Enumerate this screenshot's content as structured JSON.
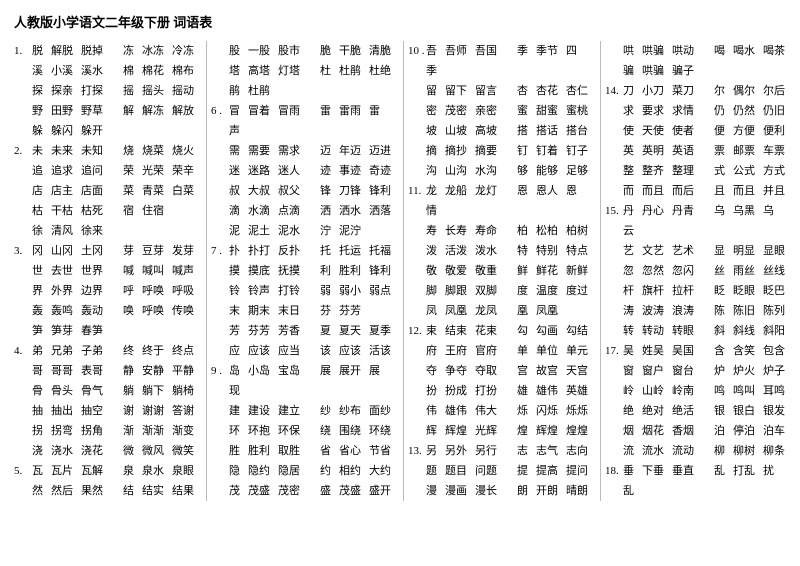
{
  "title": "人教版小学语文二年级下册 词语表",
  "columns": [
    [
      {
        "n": "1.",
        "left": [
          "脱",
          "解脱",
          "脱掉"
        ],
        "right": [
          "冻",
          "冰冻",
          "冷冻"
        ]
      },
      {
        "n": "",
        "left": [
          "溪",
          "小溪",
          "溪水"
        ],
        "right": [
          "棉",
          "棉花",
          "棉布"
        ]
      },
      {
        "n": "",
        "left": [
          "探",
          "探亲",
          "打探"
        ],
        "right": [
          "摇",
          "摇头",
          "摇动"
        ]
      },
      {
        "n": "",
        "left": [
          "野",
          "田野",
          "野草"
        ],
        "right": [
          "解",
          "解冻",
          "解放"
        ]
      },
      {
        "n": "",
        "left": [
          "躲",
          "躲闪",
          "躲开"
        ]
      },
      {
        "n": "2.",
        "left": [
          "未",
          "未来",
          "未知"
        ],
        "right": [
          "烧",
          "烧菜",
          "烧火"
        ]
      },
      {
        "n": "",
        "left": [
          "追",
          "追求",
          "追问"
        ],
        "right": [
          "荣",
          "光荣",
          "荣辛"
        ]
      },
      {
        "n": "",
        "left": [
          "店",
          "店主",
          "店面"
        ],
        "right": [
          "菜",
          "青菜",
          "白菜"
        ]
      },
      {
        "n": "",
        "left": [
          "枯",
          "干枯",
          "枯死"
        ],
        "right": [
          "宿",
          "住宿"
        ]
      },
      {
        "n": "",
        "left": [
          "徐",
          "清风",
          "徐来"
        ]
      },
      {
        "n": "3.",
        "left": [
          "冈",
          "山冈",
          "土冈"
        ],
        "right": [
          "芽",
          "豆芽",
          "发芽"
        ]
      },
      {
        "n": "",
        "left": [
          "世",
          "去世",
          "世界"
        ],
        "right": [
          "喊",
          "喊叫",
          "喊声"
        ]
      },
      {
        "n": "",
        "left": [
          "界",
          "外界",
          "边界"
        ],
        "right": [
          "呼",
          "呼唤",
          "呼吸"
        ]
      },
      {
        "n": "",
        "left": [
          "轰",
          "轰鸣",
          "轰动"
        ],
        "right": [
          "唤",
          "呼唤",
          "传唤"
        ]
      },
      {
        "n": "",
        "left": [
          "笋",
          "笋芽",
          "春笋"
        ]
      },
      {
        "n": "4.",
        "left": [
          "弟",
          "兄弟",
          "子弟"
        ],
        "right": [
          "终",
          "终于",
          "终点"
        ]
      },
      {
        "n": "",
        "left": [
          "哥",
          "哥哥",
          "表哥"
        ],
        "right": [
          "静",
          "安静",
          "平静"
        ]
      },
      {
        "n": "",
        "left": [
          "骨",
          "骨头",
          "骨气"
        ],
        "right": [
          "躺",
          "躺下",
          "躺椅"
        ]
      },
      {
        "n": "",
        "left": [
          "抽",
          "抽出",
          "抽空"
        ],
        "right": [
          "谢",
          "谢谢",
          "答谢"
        ]
      },
      {
        "n": "",
        "left": [
          "拐",
          "拐弯",
          "拐角"
        ],
        "right": [
          "渐",
          "渐渐",
          "渐变"
        ]
      },
      {
        "n": "",
        "left": [
          "浇",
          "浇水",
          "浇花"
        ],
        "right": [
          "微",
          "微风",
          "微笑"
        ]
      },
      {
        "n": "5.",
        "left": [
          "瓦",
          "瓦片",
          "瓦解"
        ],
        "right": [
          "泉",
          "泉水",
          "泉眼"
        ]
      },
      {
        "n": "",
        "left": [
          "然",
          "然后",
          "果然"
        ],
        "right": [
          "结",
          "结实",
          "结果"
        ]
      }
    ],
    [
      {
        "n": "",
        "left": [
          "股",
          "一股",
          "股市"
        ],
        "right": [
          "脆",
          "干脆",
          "清脆"
        ]
      },
      {
        "n": "",
        "left": [
          "塔",
          "高塔",
          "灯塔"
        ],
        "right": [
          "杜",
          "杜鹃",
          "杜绝"
        ]
      },
      {
        "n": "",
        "left": [
          "鹃",
          "杜鹃"
        ]
      },
      {
        "n": "6 .",
        "left": [
          "冒",
          "冒着",
          "冒雨"
        ],
        "right": [
          "雷",
          "雷雨",
          "雷声"
        ],
        "wrap": true
      },
      {
        "n": "",
        "left": [
          "需",
          "需要",
          "需求"
        ],
        "right": [
          "迈",
          "年迈",
          "迈进"
        ]
      },
      {
        "n": "",
        "left": [
          "迷",
          "迷路",
          "迷人"
        ],
        "right": [
          "迹",
          "事迹",
          "奇迹"
        ]
      },
      {
        "n": "",
        "left": [
          "叔",
          "大叔",
          "叔父"
        ],
        "right": [
          "锋",
          "刀锋",
          "锋利"
        ]
      },
      {
        "n": "",
        "left": [
          "滴",
          "水滴",
          "点滴"
        ],
        "right": [
          "洒",
          "洒水",
          "洒落"
        ]
      },
      {
        "n": "",
        "left": [
          "泥",
          "泥土",
          "泥水"
        ],
        "right": [
          "泞",
          "泥泞"
        ]
      },
      {
        "n": "7 .",
        "left": [
          "扑",
          "扑打",
          "反扑"
        ],
        "right": [
          "托",
          "托运",
          "托福"
        ]
      },
      {
        "n": "",
        "left": [
          "摸",
          "摸底",
          "抚摸"
        ],
        "right": [
          "利",
          "胜利",
          "锋利"
        ]
      },
      {
        "n": "",
        "left": [
          "铃",
          "铃声",
          "打铃"
        ],
        "right": [
          "弱",
          "弱小",
          "弱点"
        ]
      },
      {
        "n": "",
        "left": [
          "末",
          "期末",
          "末日"
        ],
        "right": [
          "芬",
          "芬芳"
        ]
      },
      {
        "n": "",
        "left": [
          "芳",
          "芬芳",
          "芳香"
        ],
        "right": [
          "夏",
          "夏天",
          "夏季"
        ]
      },
      {
        "n": "",
        "left": [
          "应",
          "应该",
          "应当"
        ],
        "right": [
          "该",
          "应该",
          "活该"
        ]
      },
      {
        "n": "9 .",
        "left": [
          "岛",
          "小岛",
          "宝岛"
        ],
        "right": [
          "展",
          "展开",
          "展现"
        ],
        "wrap": true
      },
      {
        "n": "",
        "left": [
          "建",
          "建设",
          "建立"
        ],
        "right": [
          "纱",
          "纱布",
          "面纱"
        ]
      },
      {
        "n": "",
        "left": [
          "环",
          "环抱",
          "环保"
        ],
        "right": [
          "绕",
          "围绕",
          "环绕"
        ]
      },
      {
        "n": "",
        "left": [
          "胜",
          "胜利",
          "取胜"
        ],
        "right": [
          "省",
          "省心",
          "节省"
        ]
      },
      {
        "n": "",
        "left": [
          "隐",
          "隐约",
          "隐居"
        ],
        "right": [
          "约",
          "相约",
          "大约"
        ]
      },
      {
        "n": "",
        "left": [
          "茂",
          "茂盛",
          "茂密"
        ],
        "right": [
          "盛",
          "茂盛",
          "盛开"
        ]
      }
    ],
    [
      {
        "n": "10 .",
        "left": [
          "吾",
          "吾师",
          "吾国"
        ],
        "right": [
          "季",
          "季节",
          "四季"
        ],
        "wrap": true
      },
      {
        "n": "",
        "left": [
          "留",
          "留下",
          "留言"
        ],
        "right": [
          "杏",
          "杏花",
          "杏仁"
        ]
      },
      {
        "n": "",
        "left": [
          "密",
          "茂密",
          "亲密"
        ],
        "right": [
          "蜜",
          "甜蜜",
          "蜜桃"
        ]
      },
      {
        "n": "",
        "left": [
          "坡",
          "山坡",
          "高坡"
        ],
        "right": [
          "搭",
          "搭话",
          "搭台"
        ]
      },
      {
        "n": "",
        "left": [
          "摘",
          "摘抄",
          "摘要"
        ],
        "right": [
          "钉",
          "钉着",
          "钉子"
        ]
      },
      {
        "n": "",
        "left": [
          "沟",
          "山沟",
          "水沟"
        ],
        "right": [
          "够",
          "能够",
          "足够"
        ]
      },
      {
        "n": "11.",
        "left": [
          "龙",
          "龙船",
          "龙灯"
        ],
        "right": [
          "恩",
          "恩人",
          "恩情"
        ],
        "wrap": true
      },
      {
        "n": "",
        "left": [
          "寿",
          "长寿",
          "寿命"
        ],
        "right": [
          "柏",
          "松柏",
          "柏树"
        ]
      },
      {
        "n": "",
        "left": [
          "泼",
          "活泼",
          "泼水"
        ],
        "right": [
          "特",
          "特别",
          "特点"
        ]
      },
      {
        "n": "",
        "left": [
          "敬",
          "敬爱",
          "敬重"
        ],
        "right": [
          "鲜",
          "鲜花",
          "新鲜"
        ]
      },
      {
        "n": "",
        "left": [
          "脚",
          "脚跟",
          "双脚"
        ],
        "right": [
          "度",
          "温度",
          "度过"
        ]
      },
      {
        "n": "",
        "left": [
          "凤",
          "凤凰",
          "龙凤"
        ],
        "right": [
          "凰",
          "凤凰"
        ]
      },
      {
        "n": "12.",
        "left": [
          "束",
          "结束",
          "花束"
        ],
        "right": [
          "勾",
          "勾画",
          "勾结"
        ]
      },
      {
        "n": "",
        "left": [
          "府",
          "王府",
          "官府"
        ],
        "right": [
          "单",
          "单位",
          "单元"
        ]
      },
      {
        "n": "",
        "left": [
          "夺",
          "争夺",
          "夺取"
        ],
        "right": [
          "宫",
          "故宫",
          "天宫"
        ]
      },
      {
        "n": "",
        "left": [
          "扮",
          "扮成",
          "打扮"
        ],
        "right": [
          "雄",
          "雄伟",
          "英雄"
        ]
      },
      {
        "n": "",
        "left": [
          "伟",
          "雄伟",
          "伟大"
        ],
        "right": [
          "烁",
          "闪烁",
          "烁烁"
        ]
      },
      {
        "n": "",
        "left": [
          "辉",
          "辉煌",
          "光辉"
        ],
        "right": [
          "煌",
          "辉煌",
          "煌煌"
        ]
      },
      {
        "n": "13.",
        "left": [
          "另",
          "另外",
          "另行"
        ],
        "right": [
          "志",
          "志气",
          "志向"
        ]
      },
      {
        "n": "",
        "left": [
          "题",
          "题目",
          "问题"
        ],
        "right": [
          "提",
          "提高",
          "提问"
        ]
      },
      {
        "n": "",
        "left": [
          "漫",
          "漫画",
          "漫长"
        ],
        "right": [
          "朗",
          "开朗",
          "晴朗"
        ]
      }
    ],
    [
      {
        "n": "",
        "left": [
          "哄",
          "哄骗",
          "哄动"
        ],
        "right": [
          "喝",
          "喝水",
          "喝茶"
        ]
      },
      {
        "n": "",
        "left": [
          "骗",
          "哄骗",
          "骗子"
        ]
      },
      {
        "n": "14.",
        "left": [
          "刀",
          "小刀",
          "菜刀"
        ],
        "right": [
          "尔",
          "偶尔",
          "尔后"
        ]
      },
      {
        "n": "",
        "left": [
          "求",
          "要求",
          "求情"
        ],
        "right": [
          "仍",
          "仍然",
          "仍旧"
        ]
      },
      {
        "n": "",
        "left": [
          "使",
          "天使",
          "使者"
        ],
        "right": [
          "便",
          "方便",
          "便利"
        ]
      },
      {
        "n": "",
        "left": [
          "英",
          "英明",
          "英语"
        ],
        "right": [
          "票",
          "邮票",
          "车票"
        ]
      },
      {
        "n": "",
        "left": [
          "整",
          "整齐",
          "整理"
        ],
        "right": [
          "式",
          "公式",
          "方式"
        ]
      },
      {
        "n": "",
        "left": [
          "而",
          "而且",
          "而后"
        ],
        "right": [
          "且",
          "而且",
          "并且"
        ]
      },
      {
        "n": "15.",
        "left": [
          "丹",
          "丹心",
          "丹青"
        ],
        "right": [
          "乌",
          "乌黑",
          "乌云"
        ],
        "wrap": true
      },
      {
        "n": "",
        "left": [
          "艺",
          "文艺",
          "艺术"
        ],
        "right": [
          "显",
          "明显",
          "显眼"
        ]
      },
      {
        "n": "",
        "left": [
          "忽",
          "忽然",
          "忽闪"
        ],
        "right": [
          "丝",
          "雨丝",
          "丝线"
        ]
      },
      {
        "n": "",
        "left": [
          "杆",
          "旗杆",
          "拉杆"
        ],
        "right": [
          "眨",
          "眨眼",
          "眨巴"
        ]
      },
      {
        "n": "",
        "left": [
          "涛",
          "波涛",
          "浪涛"
        ],
        "right": [
          "陈",
          "陈旧",
          "陈列"
        ]
      },
      {
        "n": "",
        "left": [
          "转",
          "转动",
          "转眼"
        ],
        "right": [
          "斜",
          "斜线",
          "斜阳"
        ]
      },
      {
        "n": "17.",
        "left": [
          "吴",
          "姓吴",
          "吴国"
        ],
        "right": [
          "含",
          "含笑",
          "包含"
        ]
      },
      {
        "n": "",
        "left": [
          "窗",
          "窗户",
          "窗台"
        ],
        "right": [
          "炉",
          "炉火",
          "炉子"
        ]
      },
      {
        "n": "",
        "left": [
          "岭",
          "山岭",
          "岭南"
        ],
        "right": [
          "鸣",
          "鸣叫",
          "耳鸣"
        ]
      },
      {
        "n": "",
        "left": [
          "绝",
          "绝对",
          "绝活"
        ],
        "right": [
          "银",
          "银白",
          "银发"
        ]
      },
      {
        "n": "",
        "left": [
          "烟",
          "烟花",
          "香烟"
        ],
        "right": [
          "泊",
          "停泊",
          "泊车"
        ]
      },
      {
        "n": "",
        "left": [
          "流",
          "流水",
          "流动"
        ],
        "right": [
          "柳",
          "柳树",
          "柳条"
        ]
      },
      {
        "n": "18.",
        "left": [
          "垂",
          "下垂",
          "垂直"
        ],
        "right": [
          "乱",
          "打乱",
          "扰乱"
        ],
        "wrap": true
      }
    ]
  ]
}
